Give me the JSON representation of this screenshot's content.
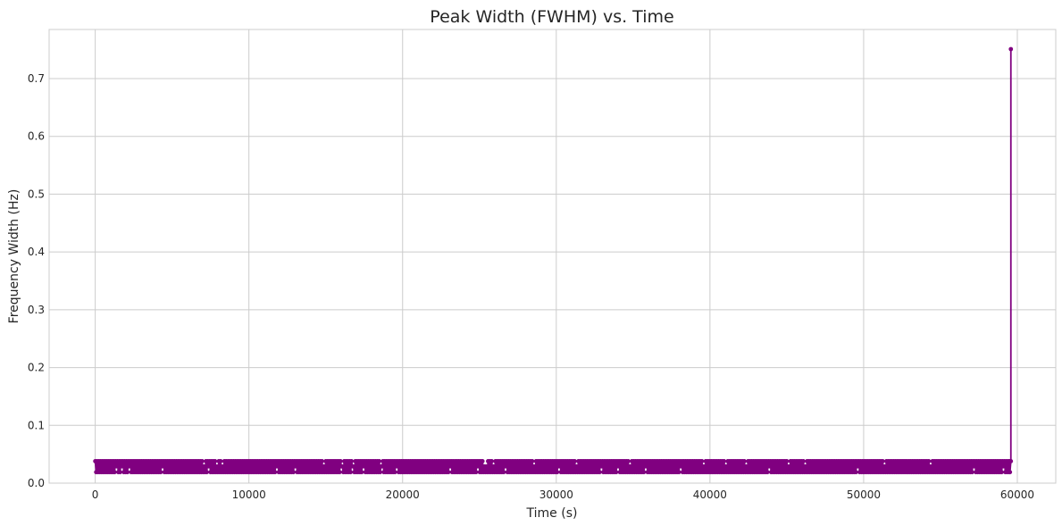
{
  "chart_data": {
    "type": "line",
    "title": "Peak Width (FWHM) vs. Time",
    "xlabel": "Time (s)",
    "ylabel": "Frequency Width (Hz)",
    "xlim": [
      -3000,
      62500
    ],
    "ylim": [
      0,
      0.785
    ],
    "xticks": [
      0,
      10000,
      20000,
      30000,
      40000,
      50000,
      60000
    ],
    "xtick_labels": [
      "0",
      "10000",
      "20000",
      "30000",
      "40000",
      "50000",
      "60000"
    ],
    "yticks": [
      0,
      0.1,
      0.2,
      0.3,
      0.4,
      0.5,
      0.6,
      0.7
    ],
    "ytick_labels": [
      "0.0",
      "0.1",
      "0.2",
      "0.3",
      "0.4",
      "0.5",
      "0.6",
      "0.7"
    ],
    "grid": true,
    "color": "#800080",
    "marker": "circle",
    "series": [
      {
        "sampling": {
          "x_start": 0,
          "x_step": 60,
          "n_points": 993,
          "pattern": "alternates between 0.019 and 0.038 Hz with occasional 0.029 Hz values"
        },
        "levels": [
          0.019,
          0.029,
          0.038
        ],
        "last_points": [
          {
            "x": 59520,
            "y": 0.038
          },
          {
            "x": 59520,
            "y": 0.019
          },
          {
            "x": 59580,
            "y": 0.038
          },
          {
            "x": 59580,
            "y": 0.751
          }
        ]
      }
    ]
  }
}
